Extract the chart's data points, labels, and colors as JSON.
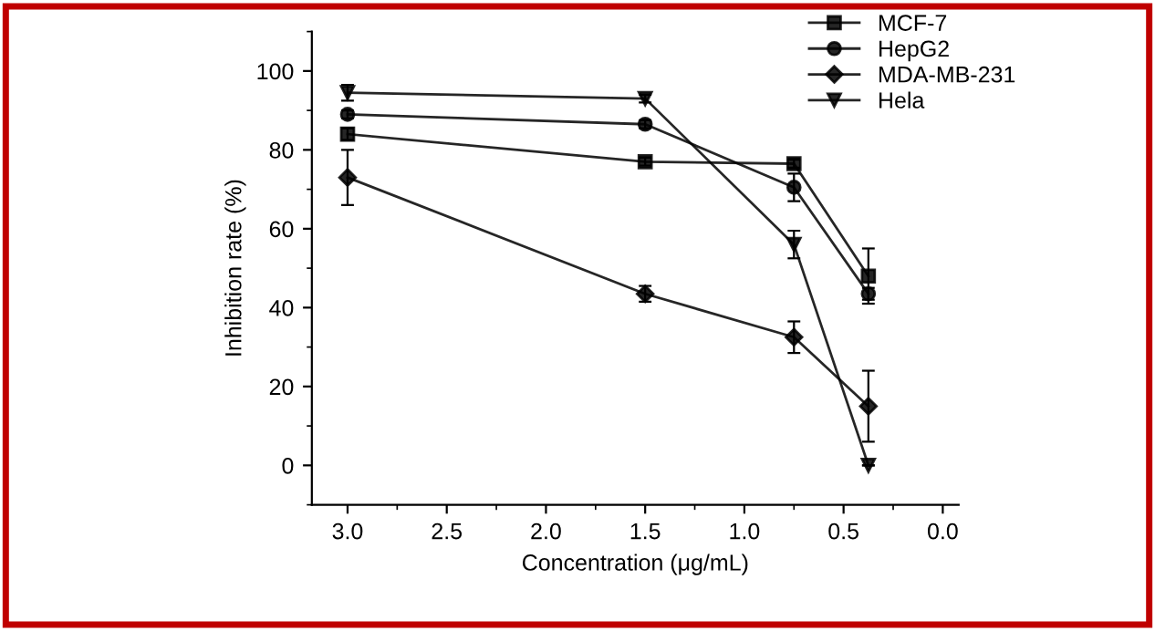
{
  "chart_data": {
    "type": "line",
    "xlabel": "Concentration (μg/mL)",
    "ylabel": "Inhibition rate (%)",
    "x": [
      3.0,
      1.5,
      0.75,
      0.375
    ],
    "xlim": [
      3.18,
      -0.08
    ],
    "xticks": [
      {
        "value": 3.0,
        "label": "3.0"
      },
      {
        "value": 2.5,
        "label": "2.5"
      },
      {
        "value": 2.0,
        "label": "2.0"
      },
      {
        "value": 1.5,
        "label": "1.5"
      },
      {
        "value": 1.0,
        "label": "1.0"
      },
      {
        "value": 0.5,
        "label": "0.5"
      },
      {
        "value": 0.0,
        "label": "0.0"
      }
    ],
    "ylim": [
      -10,
      110
    ],
    "yticks": [
      0,
      20,
      40,
      60,
      80,
      100
    ],
    "grid": false,
    "legend": "top right",
    "series": [
      {
        "name": "MCF-7",
        "color": "#000000",
        "marker": "square",
        "values": [
          84,
          77,
          76.5,
          48
        ],
        "errors": [
          1.5,
          1,
          1,
          7
        ]
      },
      {
        "name": "HepG2",
        "color": "#000000",
        "marker": "circle",
        "values": [
          89,
          86.5,
          70.5,
          43.5
        ],
        "errors": [
          1,
          1,
          3.5,
          1.5
        ]
      },
      {
        "name": "MDA-MB-231",
        "color": "#000000",
        "marker": "diamond",
        "values": [
          73,
          43.5,
          32.5,
          15
        ],
        "errors": [
          7,
          2,
          4,
          9
        ]
      },
      {
        "name": "Hela",
        "color": "#000000",
        "marker": "triangle",
        "values": [
          94.5,
          93,
          56,
          0
        ],
        "errors": [
          2,
          1,
          3.5,
          null
        ]
      }
    ]
  }
}
